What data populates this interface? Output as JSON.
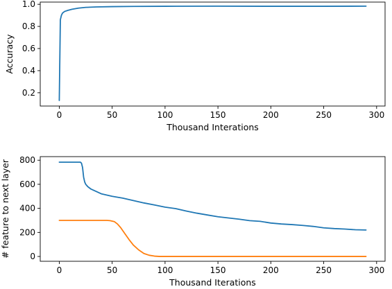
{
  "chart_data": [
    {
      "type": "line",
      "title": "",
      "xlabel": "Thousand Interations",
      "ylabel": "Accuracy",
      "xlim": [
        -18,
        308
      ],
      "ylim": [
        0.08,
        1.02
      ],
      "xticks": [
        0,
        50,
        100,
        150,
        200,
        250,
        300
      ],
      "xtick_labels": [
        "0",
        "50",
        "100",
        "150",
        "200",
        "250",
        "300"
      ],
      "yticks": [
        0.2,
        0.4,
        0.6,
        0.8,
        1.0
      ],
      "ytick_labels": [
        "0.2",
        "0.4",
        "0.6",
        "0.8",
        "1.0"
      ],
      "grid": false,
      "series": [
        {
          "color": "#1f77b4",
          "x": [
            0,
            1,
            2,
            3,
            5,
            8,
            12,
            18,
            25,
            35,
            50,
            70,
            100,
            150,
            200,
            250,
            290
          ],
          "y": [
            0.13,
            0.86,
            0.9,
            0.92,
            0.935,
            0.945,
            0.955,
            0.965,
            0.972,
            0.976,
            0.979,
            0.981,
            0.982,
            0.983,
            0.982,
            0.982,
            0.983
          ]
        }
      ]
    },
    {
      "type": "line",
      "title": "",
      "xlabel": "Thousand Iterations",
      "ylabel": "# feature to next layer",
      "xlim": [
        -18,
        308
      ],
      "ylim": [
        -40,
        830
      ],
      "xticks": [
        0,
        50,
        100,
        150,
        200,
        250,
        300
      ],
      "xtick_labels": [
        "0",
        "50",
        "100",
        "150",
        "200",
        "250",
        "300"
      ],
      "yticks": [
        0,
        200,
        400,
        600,
        800
      ],
      "ytick_labels": [
        "0",
        "200",
        "400",
        "600",
        "800"
      ],
      "grid": false,
      "series": [
        {
          "color": "#1f77b4",
          "x": [
            0,
            20,
            21,
            22,
            23,
            24,
            25,
            27,
            30,
            35,
            40,
            50,
            60,
            70,
            80,
            90,
            100,
            110,
            120,
            130,
            140,
            150,
            160,
            170,
            180,
            190,
            200,
            210,
            220,
            230,
            240,
            250,
            260,
            270,
            280,
            290
          ],
          "y": [
            784,
            784,
            775,
            740,
            660,
            620,
            600,
            580,
            560,
            540,
            520,
            500,
            485,
            465,
            445,
            428,
            410,
            398,
            378,
            360,
            345,
            330,
            320,
            310,
            298,
            292,
            278,
            270,
            265,
            258,
            250,
            238,
            232,
            228,
            222,
            220
          ]
        },
        {
          "color": "#ff7f0e",
          "x": [
            0,
            45,
            48,
            52,
            55,
            58,
            62,
            66,
            70,
            75,
            80,
            85,
            90,
            95,
            100,
            150,
            200,
            250,
            290
          ],
          "y": [
            300,
            300,
            298,
            290,
            270,
            240,
            190,
            140,
            95,
            55,
            25,
            10,
            3,
            0,
            0,
            0,
            0,
            0,
            0
          ]
        }
      ]
    }
  ]
}
